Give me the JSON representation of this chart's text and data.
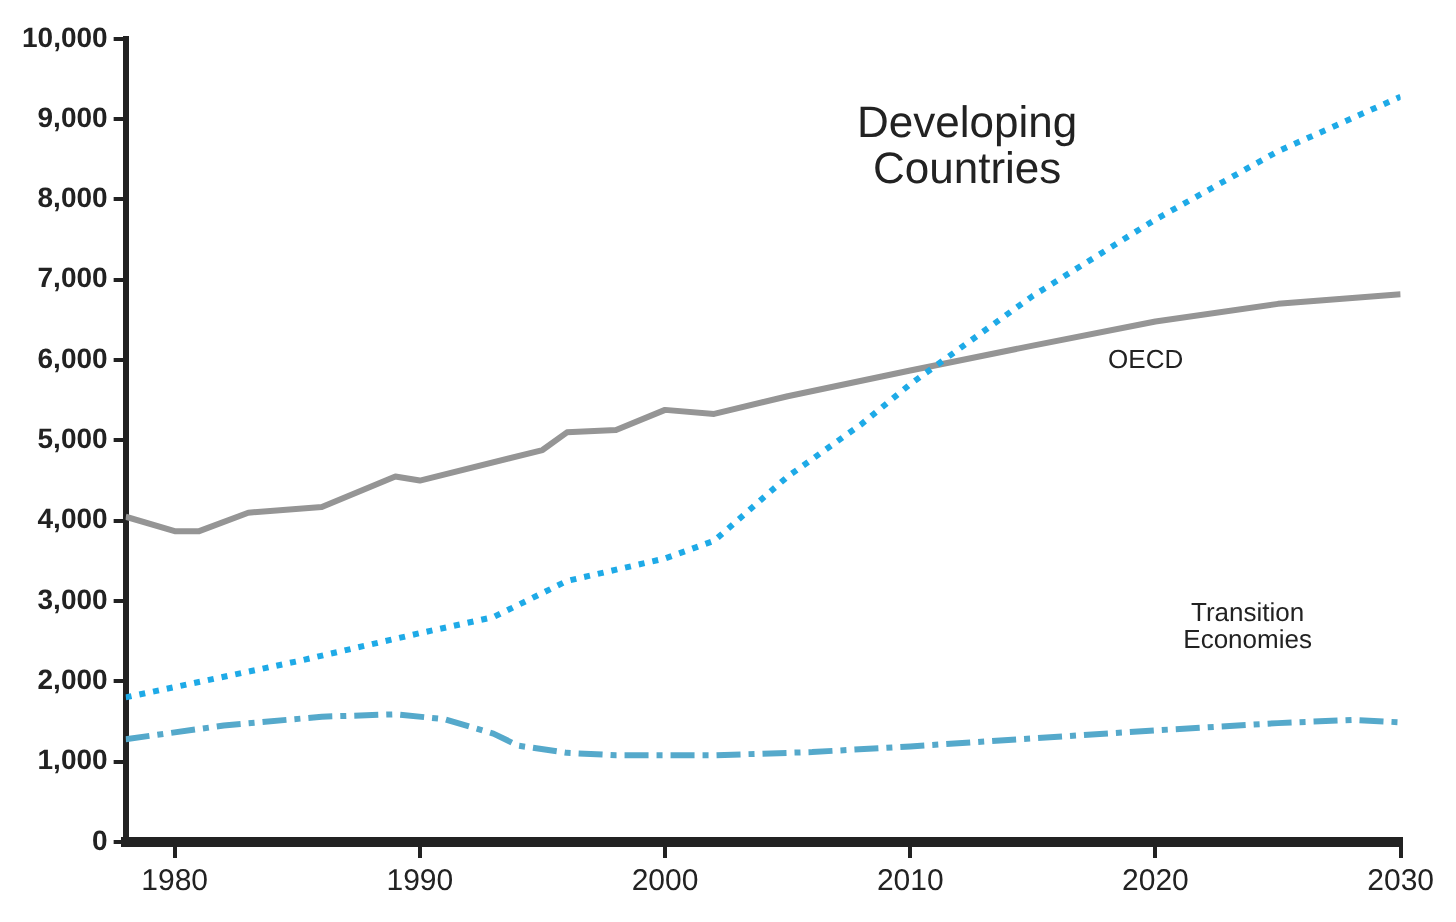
{
  "chart_data": {
    "type": "line",
    "xlim": [
      1978,
      2030
    ],
    "xticks": [
      1980,
      1990,
      2000,
      2010,
      2020,
      2030
    ],
    "ylim": [
      0,
      10000
    ],
    "yticks": [
      {
        "value": 0,
        "label": "0"
      },
      {
        "value": 1000,
        "label": "1,000"
      },
      {
        "value": 2000,
        "label": "2,000"
      },
      {
        "value": 3000,
        "label": "3,000"
      },
      {
        "value": 4000,
        "label": "4,000"
      },
      {
        "value": 5000,
        "label": "5,000"
      },
      {
        "value": 6000,
        "label": "6,000"
      },
      {
        "value": 7000,
        "label": "7,000"
      },
      {
        "value": 8000,
        "label": "8,000"
      },
      {
        "value": 9000,
        "label": "9,000"
      },
      {
        "value": 10000,
        "label": "10,000"
      }
    ],
    "grid": false,
    "legend": false,
    "marker": "none",
    "series": [
      {
        "name": "Developing Countries",
        "color": "#1eaae7",
        "line_style": "dotted",
        "x": [
          1978,
          1985,
          1990,
          1993,
          1996,
          2000,
          2002,
          2005,
          2008,
          2010,
          2015,
          2020,
          2025,
          2030
        ],
        "values": [
          1800,
          2250,
          2600,
          2800,
          3250,
          3530,
          3750,
          4550,
          5200,
          5700,
          6800,
          7750,
          8600,
          9280
        ]
      },
      {
        "name": "OECD",
        "color": "#959595",
        "line_style": "solid",
        "x": [
          1978,
          1980,
          1981,
          1983,
          1986,
          1989,
          1990,
          1995,
          1996,
          1998,
          2000,
          2002,
          2005,
          2010,
          2015,
          2020,
          2025,
          2030
        ],
        "values": [
          4050,
          3870,
          3870,
          4100,
          4170,
          4550,
          4500,
          4880,
          5100,
          5130,
          5380,
          5330,
          5550,
          5870,
          6180,
          6480,
          6700,
          6820
        ]
      },
      {
        "name": "Transition Economies",
        "color": "#55a9cb",
        "line_style": "dashed",
        "x": [
          1978,
          1982,
          1986,
          1989,
          1991,
          1993,
          1994,
          1996,
          1998,
          2002,
          2006,
          2010,
          2015,
          2020,
          2025,
          2028,
          2030
        ],
        "values": [
          1280,
          1450,
          1560,
          1590,
          1530,
          1350,
          1200,
          1110,
          1080,
          1080,
          1120,
          1190,
          1290,
          1390,
          1480,
          1520,
          1490
        ]
      }
    ]
  }
}
